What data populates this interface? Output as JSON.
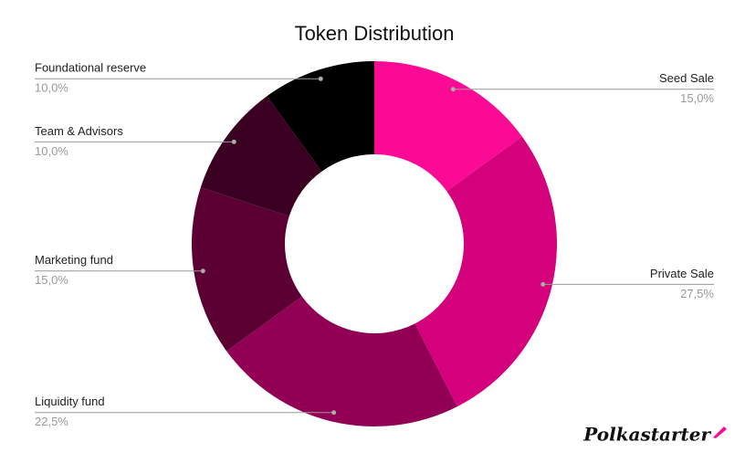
{
  "chart_data": {
    "type": "donut",
    "title": "Token Distribution",
    "categories": [
      "Seed Sale",
      "Private Sale",
      "Liquidity fund",
      "Marketing fund",
      "Team & Advisors",
      "Foundational reserve"
    ],
    "values": [
      15,
      27.5,
      22.5,
      15,
      10,
      10
    ],
    "value_labels": [
      "15,0%",
      "27,5%",
      "22,5%",
      "15,0%",
      "10,0%",
      "10,0%"
    ],
    "colors": [
      "#fb0a95",
      "#d5007c",
      "#920055",
      "#5c0034",
      "#3b0021",
      "#000000"
    ]
  },
  "logo_text": "Polkastarter"
}
